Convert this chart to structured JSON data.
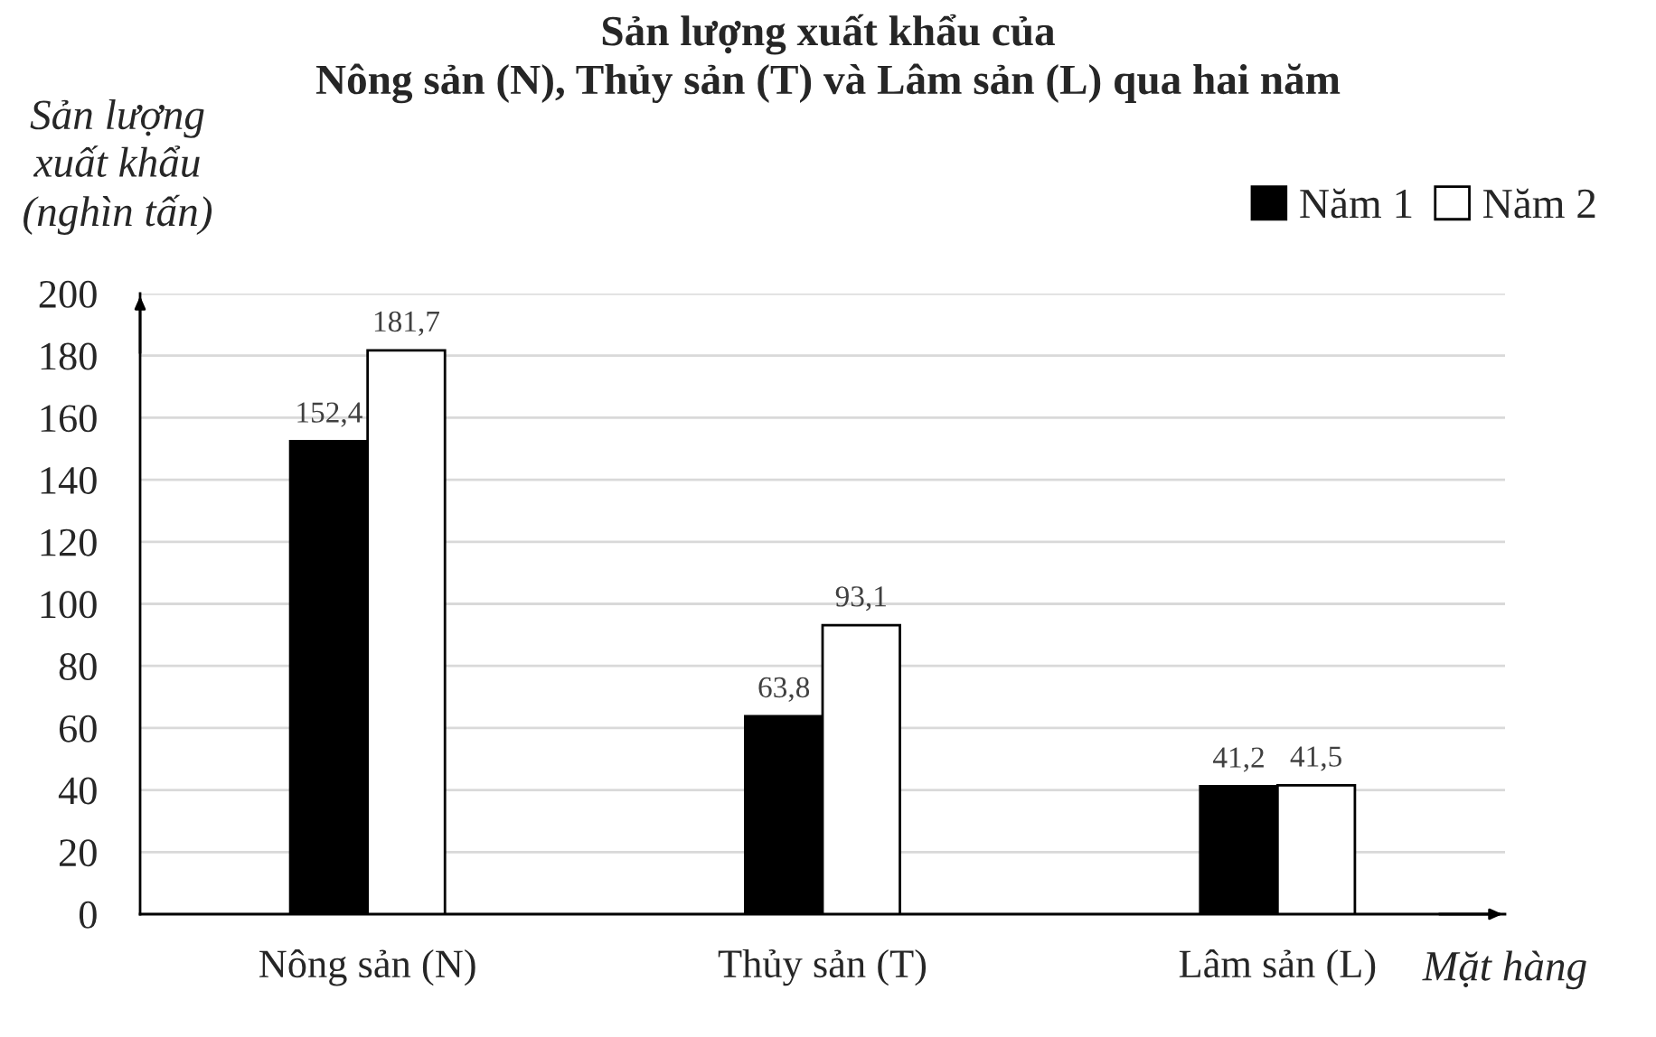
{
  "chart_data": {
    "type": "bar",
    "title": "Sản lượng xuất khẩu của\nNông sản (N), Thủy sản (T) và Lâm sản (L) qua hai năm",
    "xlabel": "Mặt hàng",
    "ylabel": "Sản lượng\nxuất khẩu\n(nghìn tấn)",
    "categories": [
      "Nông sản (N)",
      "Thủy sản (T)",
      "Lâm sản (L)"
    ],
    "series": [
      {
        "name": "Năm 1",
        "color": "#000000",
        "values": [
          152.4,
          63.8,
          41.2
        ],
        "value_labels": [
          "152,4",
          "63,8",
          "41,2"
        ]
      },
      {
        "name": "Năm 2",
        "color": "#ffffff",
        "values": [
          181.7,
          93.1,
          41.5
        ],
        "value_labels": [
          "181,7",
          "93,1",
          "41,5"
        ]
      }
    ],
    "ylim": [
      0,
      200
    ],
    "yticks": [
      0,
      20,
      40,
      60,
      80,
      100,
      120,
      140,
      160,
      180,
      200
    ],
    "grid": "y",
    "legend": "top right"
  }
}
